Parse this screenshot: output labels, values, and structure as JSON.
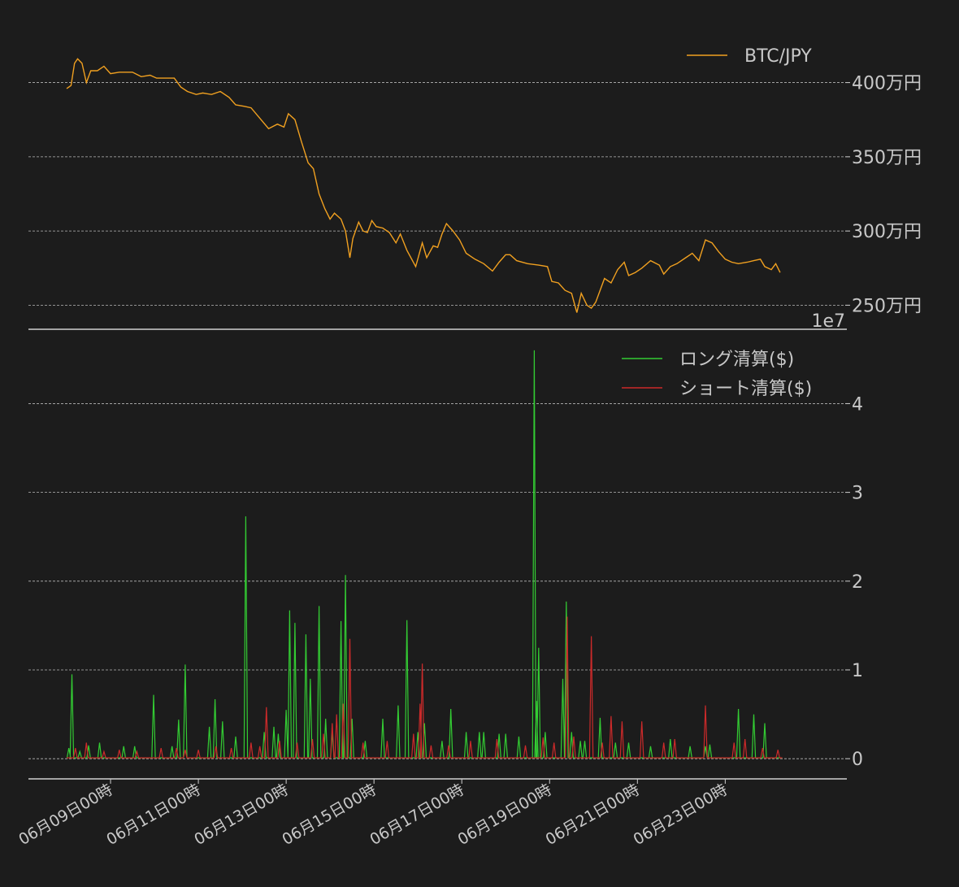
{
  "colors": {
    "background": "#1c1c1c",
    "grid": "#b8b8b8",
    "axis": "#d0d0d0",
    "text": "#c8c8c8",
    "btc": "#f0a020",
    "long": "#33cc33",
    "short": "#cc2a2a"
  },
  "chart_data": [
    {
      "type": "line",
      "panel": "price",
      "legend_position": "top-right",
      "grid": true,
      "xlim": [
        0,
        16.9
      ],
      "ylim": [
        2420000,
        4310000
      ],
      "yticks": [
        2500000,
        3000000,
        3500000,
        4000000
      ],
      "ytick_labels": [
        "250万円",
        "300万円",
        "350万円",
        "400万円"
      ],
      "series": [
        {
          "name": "BTC/JPY",
          "color": "#f0a020",
          "points": [
            [
              0.0,
              3960000
            ],
            [
              0.1,
              3980000
            ],
            [
              0.18,
              4130000
            ],
            [
              0.25,
              4160000
            ],
            [
              0.35,
              4130000
            ],
            [
              0.45,
              4000000
            ],
            [
              0.55,
              4080000
            ],
            [
              0.7,
              4080000
            ],
            [
              0.85,
              4110000
            ],
            [
              1.0,
              4060000
            ],
            [
              1.2,
              4070000
            ],
            [
              1.5,
              4070000
            ],
            [
              1.7,
              4040000
            ],
            [
              1.9,
              4050000
            ],
            [
              2.05,
              4030000
            ],
            [
              2.25,
              4030000
            ],
            [
              2.45,
              4030000
            ],
            [
              2.6,
              3970000
            ],
            [
              2.75,
              3940000
            ],
            [
              2.95,
              3920000
            ],
            [
              3.1,
              3930000
            ],
            [
              3.3,
              3920000
            ],
            [
              3.5,
              3940000
            ],
            [
              3.7,
              3900000
            ],
            [
              3.85,
              3850000
            ],
            [
              4.05,
              3840000
            ],
            [
              4.2,
              3830000
            ],
            [
              4.4,
              3760000
            ],
            [
              4.6,
              3690000
            ],
            [
              4.8,
              3720000
            ],
            [
              4.95,
              3700000
            ],
            [
              5.05,
              3790000
            ],
            [
              5.2,
              3750000
            ],
            [
              5.35,
              3600000
            ],
            [
              5.5,
              3460000
            ],
            [
              5.62,
              3420000
            ],
            [
              5.75,
              3250000
            ],
            [
              5.88,
              3150000
            ],
            [
              6.0,
              3080000
            ],
            [
              6.1,
              3120000
            ],
            [
              6.25,
              3080000
            ],
            [
              6.35,
              3000000
            ],
            [
              6.45,
              2820000
            ],
            [
              6.52,
              2950000
            ],
            [
              6.65,
              3060000
            ],
            [
              6.75,
              3000000
            ],
            [
              6.85,
              2990000
            ],
            [
              6.95,
              3070000
            ],
            [
              7.05,
              3030000
            ],
            [
              7.2,
              3020000
            ],
            [
              7.35,
              2990000
            ],
            [
              7.5,
              2920000
            ],
            [
              7.6,
              2980000
            ],
            [
              7.75,
              2870000
            ],
            [
              7.95,
              2760000
            ],
            [
              8.1,
              2920000
            ],
            [
              8.2,
              2820000
            ],
            [
              8.35,
              2900000
            ],
            [
              8.45,
              2890000
            ],
            [
              8.55,
              2980000
            ],
            [
              8.65,
              3050000
            ],
            [
              8.8,
              3000000
            ],
            [
              8.95,
              2940000
            ],
            [
              9.1,
              2850000
            ],
            [
              9.3,
              2810000
            ],
            [
              9.5,
              2780000
            ],
            [
              9.7,
              2730000
            ],
            [
              9.85,
              2790000
            ],
            [
              10.0,
              2840000
            ],
            [
              10.1,
              2840000
            ],
            [
              10.25,
              2800000
            ],
            [
              10.5,
              2780000
            ],
            [
              10.75,
              2770000
            ],
            [
              10.95,
              2760000
            ],
            [
              11.05,
              2660000
            ],
            [
              11.2,
              2650000
            ],
            [
              11.35,
              2600000
            ],
            [
              11.5,
              2580000
            ],
            [
              11.62,
              2450000
            ],
            [
              11.72,
              2580000
            ],
            [
              11.85,
              2500000
            ],
            [
              11.95,
              2480000
            ],
            [
              12.05,
              2520000
            ],
            [
              12.15,
              2600000
            ],
            [
              12.25,
              2680000
            ],
            [
              12.4,
              2650000
            ],
            [
              12.55,
              2740000
            ],
            [
              12.7,
              2790000
            ],
            [
              12.8,
              2700000
            ],
            [
              12.95,
              2720000
            ],
            [
              13.1,
              2750000
            ],
            [
              13.3,
              2800000
            ],
            [
              13.5,
              2770000
            ],
            [
              13.6,
              2710000
            ],
            [
              13.75,
              2760000
            ],
            [
              13.9,
              2780000
            ],
            [
              14.1,
              2820000
            ],
            [
              14.25,
              2850000
            ],
            [
              14.4,
              2800000
            ],
            [
              14.55,
              2940000
            ],
            [
              14.7,
              2920000
            ],
            [
              14.85,
              2860000
            ],
            [
              15.0,
              2810000
            ],
            [
              15.15,
              2790000
            ],
            [
              15.3,
              2780000
            ],
            [
              15.5,
              2790000
            ],
            [
              15.65,
              2800000
            ],
            [
              15.8,
              2810000
            ],
            [
              15.9,
              2760000
            ],
            [
              16.05,
              2740000
            ],
            [
              16.15,
              2780000
            ],
            [
              16.25,
              2720000
            ]
          ]
        }
      ]
    },
    {
      "type": "line",
      "panel": "liquidations",
      "legend_position": "top-right",
      "grid": true,
      "offset_label": "1e7",
      "xlim": [
        0,
        16.9
      ],
      "ylim": [
        -0.2,
        4.7
      ],
      "yticks": [
        0,
        1,
        2,
        3,
        4
      ],
      "ytick_labels": [
        "0",
        "1",
        "2",
        "3",
        "4"
      ],
      "xticks": [
        1,
        3,
        5,
        7,
        9,
        11,
        13,
        15
      ],
      "xtick_labels": [
        "06月09日00時",
        "06月11日00時",
        "06月13日00時",
        "06月15日00時",
        "06月17日00時",
        "06月19日00時",
        "06月21日00時",
        "06月23日00時"
      ],
      "series": [
        {
          "name": "ロング清算($)",
          "color": "#33cc33",
          "baseline": 0.01,
          "spikes": [
            [
              0.05,
              0.12
            ],
            [
              0.12,
              0.95
            ],
            [
              0.3,
              0.08
            ],
            [
              0.5,
              0.15
            ],
            [
              0.75,
              0.18
            ],
            [
              1.3,
              0.14
            ],
            [
              1.55,
              0.14
            ],
            [
              1.98,
              0.72
            ],
            [
              2.4,
              0.14
            ],
            [
              2.55,
              0.44
            ],
            [
              2.7,
              1.06
            ],
            [
              3.25,
              0.36
            ],
            [
              3.38,
              0.67
            ],
            [
              3.55,
              0.42
            ],
            [
              3.85,
              0.25
            ],
            [
              4.08,
              2.73
            ],
            [
              4.5,
              0.3
            ],
            [
              4.72,
              0.36
            ],
            [
              4.82,
              0.28
            ],
            [
              5.0,
              0.55
            ],
            [
              5.08,
              1.67
            ],
            [
              5.2,
              1.53
            ],
            [
              5.45,
              1.4
            ],
            [
              5.55,
              0.9
            ],
            [
              5.75,
              1.72
            ],
            [
              5.9,
              0.45
            ],
            [
              6.05,
              0.3
            ],
            [
              6.25,
              1.55
            ],
            [
              6.35,
              2.07
            ],
            [
              6.5,
              0.45
            ],
            [
              6.8,
              0.2
            ],
            [
              7.2,
              0.45
            ],
            [
              7.55,
              0.6
            ],
            [
              7.75,
              1.56
            ],
            [
              8.0,
              0.3
            ],
            [
              8.15,
              0.4
            ],
            [
              8.55,
              0.2
            ],
            [
              8.75,
              0.56
            ],
            [
              9.1,
              0.3
            ],
            [
              9.4,
              0.3
            ],
            [
              9.5,
              0.3
            ],
            [
              9.85,
              0.28
            ],
            [
              10.0,
              0.28
            ],
            [
              10.3,
              0.25
            ],
            [
              10.65,
              4.6
            ],
            [
              10.7,
              0.65
            ],
            [
              10.75,
              1.25
            ],
            [
              10.9,
              0.3
            ],
            [
              11.3,
              0.9
            ],
            [
              11.38,
              1.77
            ],
            [
              11.5,
              0.3
            ],
            [
              11.7,
              0.2
            ],
            [
              11.8,
              0.2
            ],
            [
              12.15,
              0.46
            ],
            [
              12.5,
              0.18
            ],
            [
              12.8,
              0.18
            ],
            [
              13.3,
              0.14
            ],
            [
              13.75,
              0.22
            ],
            [
              14.2,
              0.14
            ],
            [
              14.55,
              0.14
            ],
            [
              14.65,
              0.16
            ],
            [
              15.3,
              0.56
            ],
            [
              15.65,
              0.5
            ],
            [
              15.9,
              0.4
            ]
          ]
        },
        {
          "name": "ショート清算($)",
          "color": "#cc2a2a",
          "baseline": 0.01,
          "spikes": [
            [
              0.2,
              0.12
            ],
            [
              0.45,
              0.18
            ],
            [
              0.85,
              0.08
            ],
            [
              1.2,
              0.1
            ],
            [
              1.6,
              0.08
            ],
            [
              2.15,
              0.12
            ],
            [
              2.5,
              0.12
            ],
            [
              2.7,
              0.1
            ],
            [
              3.0,
              0.1
            ],
            [
              3.4,
              0.14
            ],
            [
              3.75,
              0.12
            ],
            [
              4.2,
              0.18
            ],
            [
              4.4,
              0.14
            ],
            [
              4.55,
              0.58
            ],
            [
              4.85,
              0.2
            ],
            [
              5.25,
              0.18
            ],
            [
              5.6,
              0.22
            ],
            [
              5.85,
              0.28
            ],
            [
              6.05,
              0.4
            ],
            [
              6.15,
              0.5
            ],
            [
              6.3,
              0.62
            ],
            [
              6.45,
              1.35
            ],
            [
              6.75,
              0.18
            ],
            [
              7.3,
              0.2
            ],
            [
              7.9,
              0.28
            ],
            [
              8.05,
              0.62
            ],
            [
              8.1,
              1.07
            ],
            [
              8.3,
              0.15
            ],
            [
              8.7,
              0.15
            ],
            [
              9.2,
              0.2
            ],
            [
              9.8,
              0.22
            ],
            [
              10.45,
              0.15
            ],
            [
              10.85,
              0.24
            ],
            [
              11.1,
              0.18
            ],
            [
              11.4,
              1.6
            ],
            [
              11.55,
              0.25
            ],
            [
              11.95,
              1.38
            ],
            [
              12.2,
              0.18
            ],
            [
              12.4,
              0.48
            ],
            [
              12.65,
              0.42
            ],
            [
              13.1,
              0.42
            ],
            [
              13.6,
              0.18
            ],
            [
              13.85,
              0.22
            ],
            [
              14.55,
              0.6
            ],
            [
              15.2,
              0.18
            ],
            [
              15.45,
              0.22
            ],
            [
              15.85,
              0.12
            ],
            [
              16.2,
              0.1
            ]
          ]
        }
      ]
    }
  ]
}
